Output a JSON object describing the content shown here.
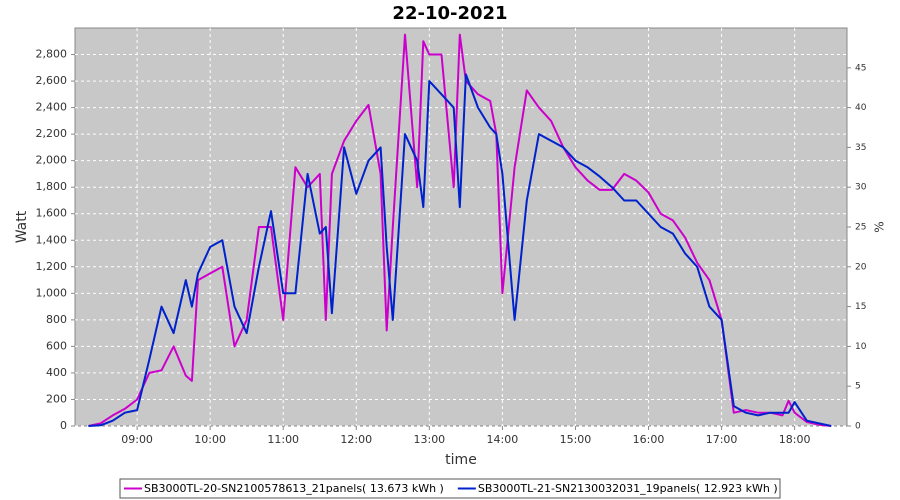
{
  "chart_data": {
    "type": "line",
    "title": "22-10-2021",
    "xlabel": "time",
    "ylabel": "Watt",
    "y2label": "%",
    "x": [
      "08:20",
      "08:30",
      "08:40",
      "08:50",
      "09:00",
      "09:10",
      "09:20",
      "09:30",
      "09:40",
      "09:45",
      "09:50",
      "10:00",
      "10:10",
      "10:20",
      "10:30",
      "10:40",
      "10:50",
      "11:00",
      "11:10",
      "11:20",
      "11:30",
      "11:35",
      "11:40",
      "11:50",
      "12:00",
      "12:10",
      "12:20",
      "12:25",
      "12:30",
      "12:40",
      "12:50",
      "12:55",
      "13:00",
      "13:10",
      "13:20",
      "13:25",
      "13:30",
      "13:40",
      "13:50",
      "13:55",
      "14:00",
      "14:10",
      "14:20",
      "14:30",
      "14:40",
      "14:50",
      "15:00",
      "15:10",
      "15:20",
      "15:30",
      "15:40",
      "15:50",
      "16:00",
      "16:10",
      "16:20",
      "16:30",
      "16:40",
      "16:50",
      "17:00",
      "17:10",
      "17:20",
      "17:30",
      "17:40",
      "17:50",
      "17:55",
      "18:00",
      "18:10",
      "18:20",
      "18:30"
    ],
    "series": [
      {
        "name": "SB3000TL-20-SN2100578613_21panels( 13.673 kWh )",
        "color": "#cc00cc",
        "values": [
          0,
          20,
          80,
          130,
          200,
          400,
          420,
          600,
          380,
          340,
          1100,
          1150,
          1200,
          600,
          800,
          1500,
          1500,
          800,
          1950,
          1800,
          1900,
          800,
          1900,
          2150,
          2300,
          2420,
          1900,
          720,
          1500,
          2950,
          1800,
          2900,
          2800,
          2800,
          1800,
          2950,
          2600,
          2500,
          2450,
          2200,
          1000,
          1950,
          2530,
          2400,
          2300,
          2100,
          1950,
          1850,
          1780,
          1780,
          1900,
          1850,
          1760,
          1600,
          1550,
          1420,
          1230,
          1100,
          800,
          100,
          120,
          100,
          100,
          80,
          190,
          100,
          30,
          10,
          0
        ]
      },
      {
        "name": "SB3000TL-21-SN2130032031_19panels( 12.923 kWh )",
        "color": "#0022cc",
        "values": [
          0,
          5,
          40,
          100,
          120,
          500,
          900,
          700,
          1100,
          900,
          1150,
          1350,
          1400,
          900,
          700,
          1200,
          1620,
          1000,
          1000,
          1900,
          1450,
          1500,
          850,
          2100,
          1750,
          2000,
          2100,
          1350,
          800,
          2200,
          2000,
          1650,
          2600,
          2500,
          2400,
          1650,
          2650,
          2400,
          2250,
          2200,
          1900,
          800,
          1700,
          2200,
          2150,
          2100,
          2000,
          1950,
          1880,
          1800,
          1700,
          1700,
          1600,
          1500,
          1450,
          1300,
          1200,
          900,
          800,
          150,
          100,
          80,
          100,
          100,
          100,
          180,
          40,
          20,
          0
        ]
      }
    ],
    "xlim": [
      "08:09",
      "18:43"
    ],
    "xticks": [
      "09:00",
      "10:00",
      "11:00",
      "12:00",
      "13:00",
      "14:00",
      "15:00",
      "16:00",
      "17:00",
      "18:00"
    ],
    "ylim": [
      0,
      3000
    ],
    "yticks": [
      0,
      200,
      400,
      600,
      800,
      {
        "value": 1000,
        "label": "1,000"
      },
      {
        "value": 1200,
        "label": "1,200"
      },
      {
        "value": 1400,
        "label": "1,400"
      },
      {
        "value": 1600,
        "label": "1,600"
      },
      {
        "value": 1800,
        "label": "1,800"
      },
      {
        "value": 2000,
        "label": "2,000"
      },
      {
        "value": 2200,
        "label": "2,200"
      },
      {
        "value": 2400,
        "label": "2,400"
      },
      {
        "value": 2600,
        "label": "2,600"
      },
      {
        "value": 2800,
        "label": "2,800"
      }
    ],
    "y2lim": [
      0,
      50
    ],
    "y2ticks": [
      0,
      5,
      10,
      15,
      20,
      25,
      30,
      35,
      40,
      45
    ],
    "grid": true,
    "legend": "bottom"
  }
}
